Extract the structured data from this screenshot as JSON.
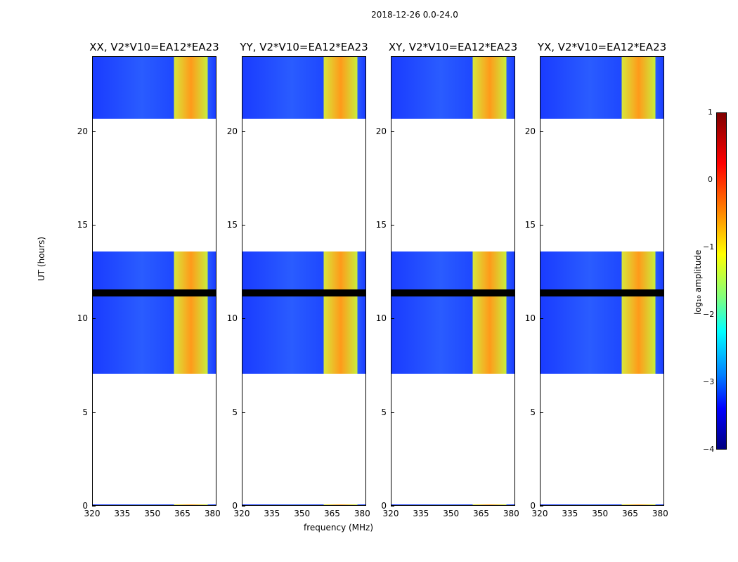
{
  "figure": {
    "suptitle": "2018-12-26 0.0-24.0",
    "xlabel": "frequency (MHz)",
    "ylabel": "UT (hours)",
    "colorbar": {
      "label": "log₁₀ amplitude",
      "ticks": [
        "1",
        "0",
        "−1",
        "−2",
        "−3",
        "−4"
      ],
      "range": [
        -4,
        1
      ],
      "colormap": "jet"
    }
  },
  "chart_data": [
    {
      "type": "heatmap",
      "title": "XX, V2*V10=EA12*EA23",
      "xlim": [
        320,
        382
      ],
      "ylim": [
        0,
        24
      ],
      "xticks": [
        "320",
        "335",
        "350",
        "365",
        "380"
      ],
      "yticks": [
        "0",
        "5",
        "10",
        "15",
        "20"
      ],
      "strong_band_mhz": [
        361,
        378
      ]
    },
    {
      "type": "heatmap",
      "title": "YY, V2*V10=EA12*EA23",
      "xlim": [
        320,
        382
      ],
      "ylim": [
        0,
        24
      ],
      "xticks": [
        "320",
        "335",
        "350",
        "365",
        "380"
      ],
      "yticks": [
        "0",
        "5",
        "10",
        "15",
        "20"
      ],
      "strong_band_mhz": [
        361,
        378
      ]
    },
    {
      "type": "heatmap",
      "title": "XY, V2*V10=EA12*EA23",
      "xlim": [
        320,
        382
      ],
      "ylim": [
        0,
        24
      ],
      "xticks": [
        "320",
        "335",
        "350",
        "365",
        "380"
      ],
      "yticks": [
        "0",
        "5",
        "10",
        "15",
        "20"
      ],
      "strong_band_mhz": [
        361,
        378
      ]
    },
    {
      "type": "heatmap",
      "title": "YX, V2*V10=EA12*EA23",
      "xlim": [
        320,
        382
      ],
      "ylim": [
        0,
        24
      ],
      "xticks": [
        "320",
        "335",
        "350",
        "365",
        "380"
      ],
      "yticks": [
        "0",
        "5",
        "10",
        "15",
        "20"
      ],
      "strong_band_mhz": [
        361,
        378
      ]
    }
  ],
  "observed_hour_ranges": [
    [
      0,
      0.1
    ],
    [
      7.1,
      9.3
    ],
    [
      9.3,
      13.6
    ],
    [
      20.7,
      24
    ]
  ]
}
